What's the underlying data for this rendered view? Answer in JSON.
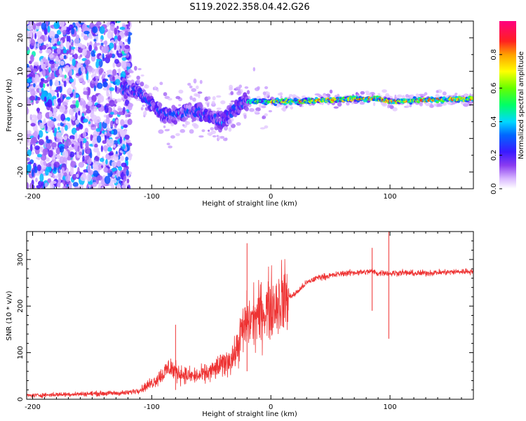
{
  "title": "S119.2022.358.04.42.G26",
  "chart_data": [
    {
      "type": "heatmap",
      "xlabel": "Height of straight line (km)",
      "ylabel": "Frequency (Hz)",
      "xlim": [
        -205,
        170
      ],
      "ylim": [
        -25,
        25
      ],
      "xticks": [
        -200,
        -100,
        0,
        100
      ],
      "yticks": [
        -20,
        -10,
        0,
        10,
        20
      ],
      "colorbar": {
        "label": "Normalized spectral amplitude",
        "range": [
          0,
          1
        ],
        "ticks": [
          "0.0",
          "0.2",
          "0.4",
          "0.6",
          "0.8"
        ],
        "colormap": "rainbow (white-violet-blue-cyan-green-yellow-red-magenta)"
      },
      "ridge": {
        "description": "dominant frequency trace vs height",
        "x": [
          -205,
          -180,
          -150,
          -120,
          -110,
          -100,
          -90,
          -80,
          -70,
          -60,
          -50,
          -40,
          -30,
          -20,
          -10,
          0,
          20,
          50,
          80,
          90,
          100,
          130,
          170
        ],
        "y": [
          0,
          3,
          4,
          5,
          4,
          0,
          -3,
          -3,
          -2,
          -2,
          -4,
          -5,
          -1,
          1,
          1,
          1,
          1,
          1.5,
          1.8,
          2,
          1,
          1.5,
          1.8
        ]
      }
    },
    {
      "type": "line",
      "xlabel": "Height of straight line (km)",
      "ylabel": "SNR (10 * v/v)",
      "xlim": [
        -205,
        170
      ],
      "ylim": [
        0,
        360
      ],
      "xticks": [
        -200,
        -100,
        0,
        100
      ],
      "yticks": [
        0,
        100,
        200,
        300
      ],
      "color": "#ee3333",
      "series": [
        {
          "x": [
            -205,
            -180,
            -150,
            -130,
            -120,
            -110,
            -100,
            -90,
            -85,
            -80,
            -70,
            -60,
            -50,
            -40,
            -30,
            -25,
            -20,
            -10,
            0,
            10,
            20,
            30,
            40,
            50,
            60,
            70,
            80,
            85,
            90,
            95,
            100,
            110,
            120,
            140,
            170
          ],
          "values": [
            8,
            10,
            12,
            13,
            14,
            20,
            35,
            55,
            70,
            60,
            50,
            50,
            60,
            75,
            95,
            140,
            165,
            180,
            200,
            215,
            225,
            250,
            262,
            265,
            270,
            272,
            273,
            275,
            270,
            272,
            270,
            272,
            270,
            272,
            275
          ]
        }
      ],
      "spikes": [
        {
          "x": -80,
          "values": [
            20,
            160
          ]
        },
        {
          "x": -20,
          "values": [
            60,
            335
          ]
        },
        {
          "x": 85,
          "values": [
            190,
            325
          ]
        },
        {
          "x": 99,
          "values": [
            130,
            360
          ]
        }
      ]
    }
  ]
}
